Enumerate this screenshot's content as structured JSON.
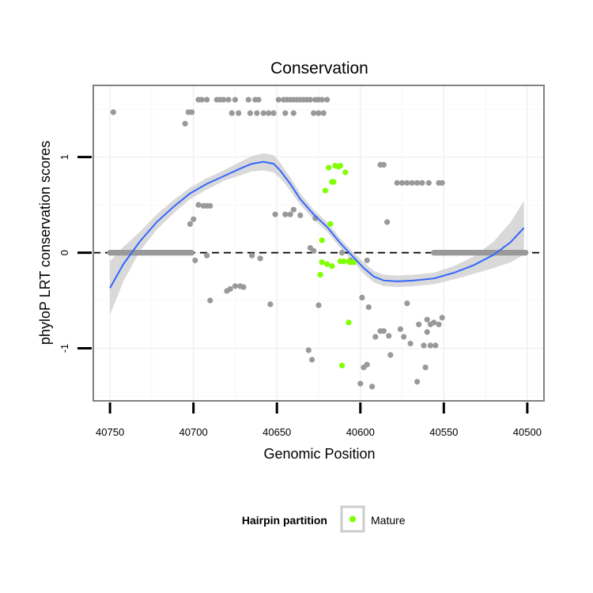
{
  "chart_data": {
    "type": "scatter",
    "title": "Conservation",
    "xlabel": "Genomic Position",
    "ylabel": "phyloP LRT conservation scores",
    "xlim": [
      40760,
      40490
    ],
    "ylim": [
      -1.55,
      1.75
    ],
    "x_reversed": true,
    "x_ticks": [
      40750,
      40700,
      40650,
      40600,
      40550,
      40500
    ],
    "y_ticks": [
      -1,
      0,
      1
    ],
    "reference_line_y": 0,
    "grid": true,
    "legend": {
      "title": "Hairpin partition",
      "position": "bottom",
      "entries": [
        {
          "label": "Mature",
          "color": "#7fff00"
        }
      ]
    },
    "colors": {
      "other": "#999999",
      "mature": "#7fff00",
      "smooth": "#3366ff",
      "ribbon": "#cccccc",
      "panel_border": "#808080"
    },
    "series": [
      {
        "role": "other",
        "points": [
          [
            40748,
            1.47
          ],
          [
            40705,
            1.35
          ],
          [
            40703,
            1.47
          ],
          [
            40701,
            1.47
          ],
          [
            40697,
            1.6
          ],
          [
            40695,
            1.6
          ],
          [
            40692,
            1.6
          ],
          [
            40686,
            1.6
          ],
          [
            40684,
            1.6
          ],
          [
            40682,
            1.6
          ],
          [
            40679,
            1.6
          ],
          [
            40675,
            1.6
          ],
          [
            40677,
            1.46
          ],
          [
            40673,
            1.46
          ],
          [
            40667,
            1.6
          ],
          [
            40663,
            1.6
          ],
          [
            40661,
            1.6
          ],
          [
            40666,
            1.46
          ],
          [
            40662,
            1.46
          ],
          [
            40658,
            1.46
          ],
          [
            40655,
            1.46
          ],
          [
            40652,
            1.46
          ],
          [
            40649,
            1.6
          ],
          [
            40646,
            1.6
          ],
          [
            40644,
            1.6
          ],
          [
            40642,
            1.6
          ],
          [
            40640,
            1.6
          ],
          [
            40638,
            1.6
          ],
          [
            40636,
            1.6
          ],
          [
            40634,
            1.6
          ],
          [
            40632,
            1.6
          ],
          [
            40630,
            1.6
          ],
          [
            40627,
            1.6
          ],
          [
            40625,
            1.6
          ],
          [
            40623,
            1.6
          ],
          [
            40620,
            1.6
          ],
          [
            40645,
            1.46
          ],
          [
            40640,
            1.46
          ],
          [
            40628,
            1.46
          ],
          [
            40625,
            1.46
          ],
          [
            40622,
            1.46
          ],
          [
            40697,
            0.5
          ],
          [
            40694,
            0.49
          ],
          [
            40692,
            0.49
          ],
          [
            40690,
            0.49
          ],
          [
            40702,
            0.3
          ],
          [
            40700,
            0.35
          ],
          [
            40699,
            -0.08
          ],
          [
            40692,
            -0.03
          ],
          [
            40690,
            -0.5
          ],
          [
            40680,
            -0.4
          ],
          [
            40678,
            -0.38
          ],
          [
            40675,
            -0.35
          ],
          [
            40672,
            -0.35
          ],
          [
            40670,
            -0.36
          ],
          [
            40665,
            -0.03
          ],
          [
            40660,
            -0.06
          ],
          [
            40654,
            -0.54
          ],
          [
            40651,
            0.4
          ],
          [
            40645,
            0.4
          ],
          [
            40642,
            0.4
          ],
          [
            40640,
            0.45
          ],
          [
            40636,
            0.39
          ],
          [
            40627,
            0.36
          ],
          [
            40630,
            0.05
          ],
          [
            40628,
            0.02
          ],
          [
            40625,
            -0.55
          ],
          [
            40631,
            -1.02
          ],
          [
            40629,
            -1.12
          ],
          [
            40611,
            0.0
          ],
          [
            40606,
            -0.08
          ],
          [
            40596,
            -0.08
          ],
          [
            40599,
            -0.47
          ],
          [
            40595,
            -0.57
          ],
          [
            40591,
            -0.88
          ],
          [
            40586,
            -0.82
          ],
          [
            40583,
            -0.87
          ],
          [
            40582,
            -1.07
          ],
          [
            40588,
            -0.82
          ],
          [
            40600,
            -1.37
          ],
          [
            40598,
            -1.2
          ],
          [
            40596,
            -1.17
          ],
          [
            40593,
            -1.4
          ],
          [
            40588,
            0.92
          ],
          [
            40586,
            0.92
          ],
          [
            40584,
            0.32
          ],
          [
            40578,
            0.73
          ],
          [
            40575,
            0.73
          ],
          [
            40572,
            0.73
          ],
          [
            40569,
            0.73
          ],
          [
            40566,
            0.73
          ],
          [
            40563,
            0.73
          ],
          [
            40559,
            0.73
          ],
          [
            40553,
            0.73
          ],
          [
            40551,
            0.73
          ],
          [
            40570,
            -0.95
          ],
          [
            40565,
            -0.75
          ],
          [
            40558,
            -0.75
          ],
          [
            40556,
            -0.73
          ],
          [
            40572,
            -0.53
          ],
          [
            40576,
            -0.8
          ],
          [
            40574,
            -0.88
          ],
          [
            40560,
            -0.7
          ],
          [
            40553,
            -0.75
          ],
          [
            40551,
            -0.68
          ],
          [
            40562,
            -0.97
          ],
          [
            40558,
            -0.97
          ],
          [
            40560,
            -0.83
          ],
          [
            40555,
            -0.97
          ],
          [
            40561,
            -1.2
          ],
          [
            40566,
            -1.35
          ]
        ],
        "band_zero_ranges": [
          [
            40750,
            40701
          ],
          [
            40556,
            40501
          ]
        ]
      },
      {
        "role": "mature",
        "name": "Mature",
        "points": [
          [
            40613,
            0.9
          ],
          [
            40615,
            0.91
          ],
          [
            40612,
            0.91
          ],
          [
            40619,
            0.89
          ],
          [
            40609,
            0.84
          ],
          [
            40616,
            0.74
          ],
          [
            40617,
            0.74
          ],
          [
            40621,
            0.65
          ],
          [
            40618,
            0.3
          ],
          [
            40623,
            0.13
          ],
          [
            40623,
            -0.1
          ],
          [
            40620,
            -0.12
          ],
          [
            40617,
            -0.14
          ],
          [
            40624,
            -0.23
          ],
          [
            40612,
            -0.09
          ],
          [
            40610,
            -0.09
          ],
          [
            40606,
            -0.1
          ],
          [
            40607,
            -0.09
          ],
          [
            40604,
            -0.1
          ],
          [
            40607,
            -0.73
          ],
          [
            40611,
            -1.18
          ]
        ]
      }
    ],
    "smooth_curve": {
      "x": [
        40750,
        40742,
        40732,
        40722,
        40712,
        40702,
        40692,
        40682,
        40672,
        40665,
        40658,
        40652,
        40648,
        40642,
        40636,
        40628,
        40620,
        40612,
        40604,
        40598,
        40592,
        40586,
        40578,
        40568,
        40556,
        40544,
        40532,
        40520,
        40510,
        40502
      ],
      "y": [
        -0.37,
        -0.12,
        0.12,
        0.32,
        0.48,
        0.62,
        0.72,
        0.8,
        0.88,
        0.93,
        0.95,
        0.93,
        0.86,
        0.72,
        0.56,
        0.4,
        0.27,
        0.1,
        -0.05,
        -0.16,
        -0.25,
        -0.29,
        -0.3,
        -0.29,
        -0.27,
        -0.21,
        -0.13,
        -0.02,
        0.11,
        0.26
      ],
      "lower": [
        -0.65,
        -0.3,
        0.02,
        0.24,
        0.41,
        0.56,
        0.66,
        0.75,
        0.81,
        0.85,
        0.86,
        0.84,
        0.78,
        0.65,
        0.5,
        0.35,
        0.22,
        0.05,
        -0.1,
        -0.22,
        -0.31,
        -0.35,
        -0.36,
        -0.35,
        -0.33,
        -0.28,
        -0.22,
        -0.16,
        -0.1,
        -0.02
      ],
      "upper": [
        -0.09,
        0.06,
        0.22,
        0.4,
        0.55,
        0.68,
        0.78,
        0.86,
        0.95,
        1.01,
        1.04,
        1.02,
        0.94,
        0.79,
        0.62,
        0.45,
        0.32,
        0.15,
        0.0,
        -0.1,
        -0.19,
        -0.23,
        -0.24,
        -0.23,
        -0.21,
        -0.14,
        -0.04,
        0.12,
        0.32,
        0.54
      ]
    }
  }
}
